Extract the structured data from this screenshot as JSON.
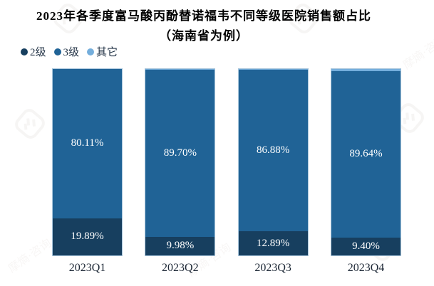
{
  "title": {
    "line1": "2023年各季度富马酸丙酚替诺福韦不同等级医院销售额占比",
    "line2": "（海南省为例）"
  },
  "legend": [
    {
      "label": "2级",
      "color": "#173f5f"
    },
    {
      "label": "3级",
      "color": "#206396"
    },
    {
      "label": "其它",
      "color": "#74aedc"
    }
  ],
  "chart_data": {
    "type": "bar",
    "stacked": true,
    "title": "2023年各季度富马酸丙酚替诺福韦不同等级医院销售额占比（海南省为例）",
    "categories": [
      "2023Q1",
      "2023Q2",
      "2023Q3",
      "2023Q4"
    ],
    "series": [
      {
        "name": "2级",
        "color": "#173f5f",
        "values": [
          19.89,
          9.98,
          12.89,
          9.4
        ],
        "labels": [
          "19.89%",
          "9.98%",
          "12.89%",
          "9.40%"
        ]
      },
      {
        "name": "3级",
        "color": "#206396",
        "values": [
          80.11,
          89.7,
          86.88,
          89.64
        ],
        "labels": [
          "80.11%",
          "89.70%",
          "86.88%",
          "89.64%"
        ]
      },
      {
        "name": "其它",
        "color": "#74aedc",
        "values": [
          0.0,
          0.32,
          0.23,
          0.96
        ],
        "labels": [
          "",
          "",
          "",
          ""
        ]
      }
    ],
    "ylim": [
      0,
      100
    ],
    "grid": false,
    "axes_visible": false,
    "value_label_color": "#ffffff",
    "legend_position": "top-left"
  },
  "watermark": {
    "text": "摩熵·咨询"
  }
}
